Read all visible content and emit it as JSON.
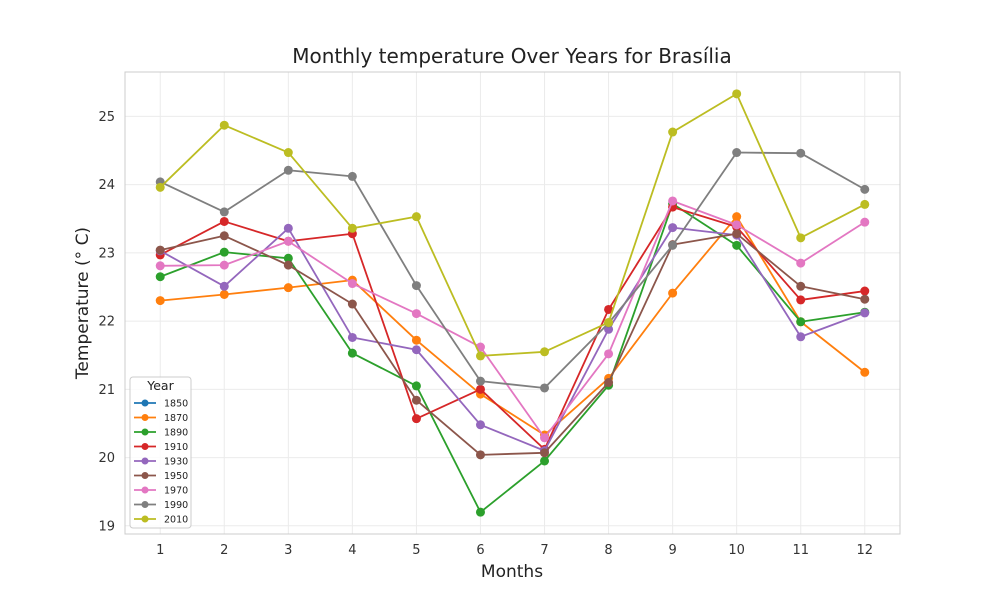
{
  "chart_data": {
    "type": "line",
    "title": "Monthly temperature Over Years for Brasília",
    "xlabel": "Months",
    "ylabel": "Temperature (° C)",
    "x": [
      1,
      2,
      3,
      4,
      5,
      6,
      7,
      8,
      9,
      10,
      11,
      12
    ],
    "xlim": [
      0.45,
      12.55
    ],
    "ylim": [
      18.88,
      25.65
    ],
    "yticks": [
      19,
      20,
      21,
      22,
      23,
      24,
      25
    ],
    "grid": true,
    "legend": {
      "title": "Year",
      "position": "lower-left"
    },
    "series": [
      {
        "name": "1850",
        "color": "#1f77b4",
        "values": [
          null,
          null,
          null,
          null,
          null,
          null,
          null,
          null,
          null,
          null,
          null,
          null
        ]
      },
      {
        "name": "1870",
        "color": "#ff7f0e",
        "values": [
          22.3,
          22.39,
          22.49,
          22.6,
          21.72,
          20.93,
          20.33,
          21.16,
          22.41,
          23.53,
          21.99,
          21.25
        ]
      },
      {
        "name": "1890",
        "color": "#2ca02c",
        "values": [
          22.65,
          23.01,
          22.92,
          21.53,
          21.05,
          19.2,
          19.95,
          21.06,
          23.72,
          23.11,
          21.99,
          22.13
        ]
      },
      {
        "name": "1910",
        "color": "#d62728",
        "values": [
          22.97,
          23.46,
          23.17,
          23.28,
          20.57,
          21.0,
          20.12,
          22.17,
          23.67,
          23.38,
          22.31,
          22.44
        ]
      },
      {
        "name": "1930",
        "color": "#9467bd",
        "values": [
          23.03,
          22.51,
          23.36,
          21.76,
          21.58,
          20.48,
          20.1,
          21.88,
          23.37,
          23.26,
          21.77,
          22.12
        ]
      },
      {
        "name": "1950",
        "color": "#8c564b",
        "values": [
          23.04,
          23.25,
          22.82,
          22.25,
          20.84,
          20.04,
          20.07,
          21.1,
          23.12,
          23.28,
          22.51,
          22.32
        ]
      },
      {
        "name": "1970",
        "color": "#e377c2",
        "values": [
          22.81,
          22.82,
          23.17,
          22.55,
          22.11,
          21.62,
          20.29,
          21.52,
          23.76,
          23.41,
          22.85,
          23.45
        ]
      },
      {
        "name": "1990",
        "color": "#7f7f7f",
        "values": [
          24.04,
          23.6,
          24.21,
          24.12,
          22.52,
          21.12,
          21.02,
          21.97,
          23.11,
          24.47,
          24.46,
          23.93
        ]
      },
      {
        "name": "2010",
        "color": "#bcbd22",
        "values": [
          23.96,
          24.87,
          24.47,
          23.36,
          23.53,
          21.49,
          21.55,
          21.98,
          24.77,
          25.33,
          23.22,
          23.71
        ]
      }
    ]
  }
}
